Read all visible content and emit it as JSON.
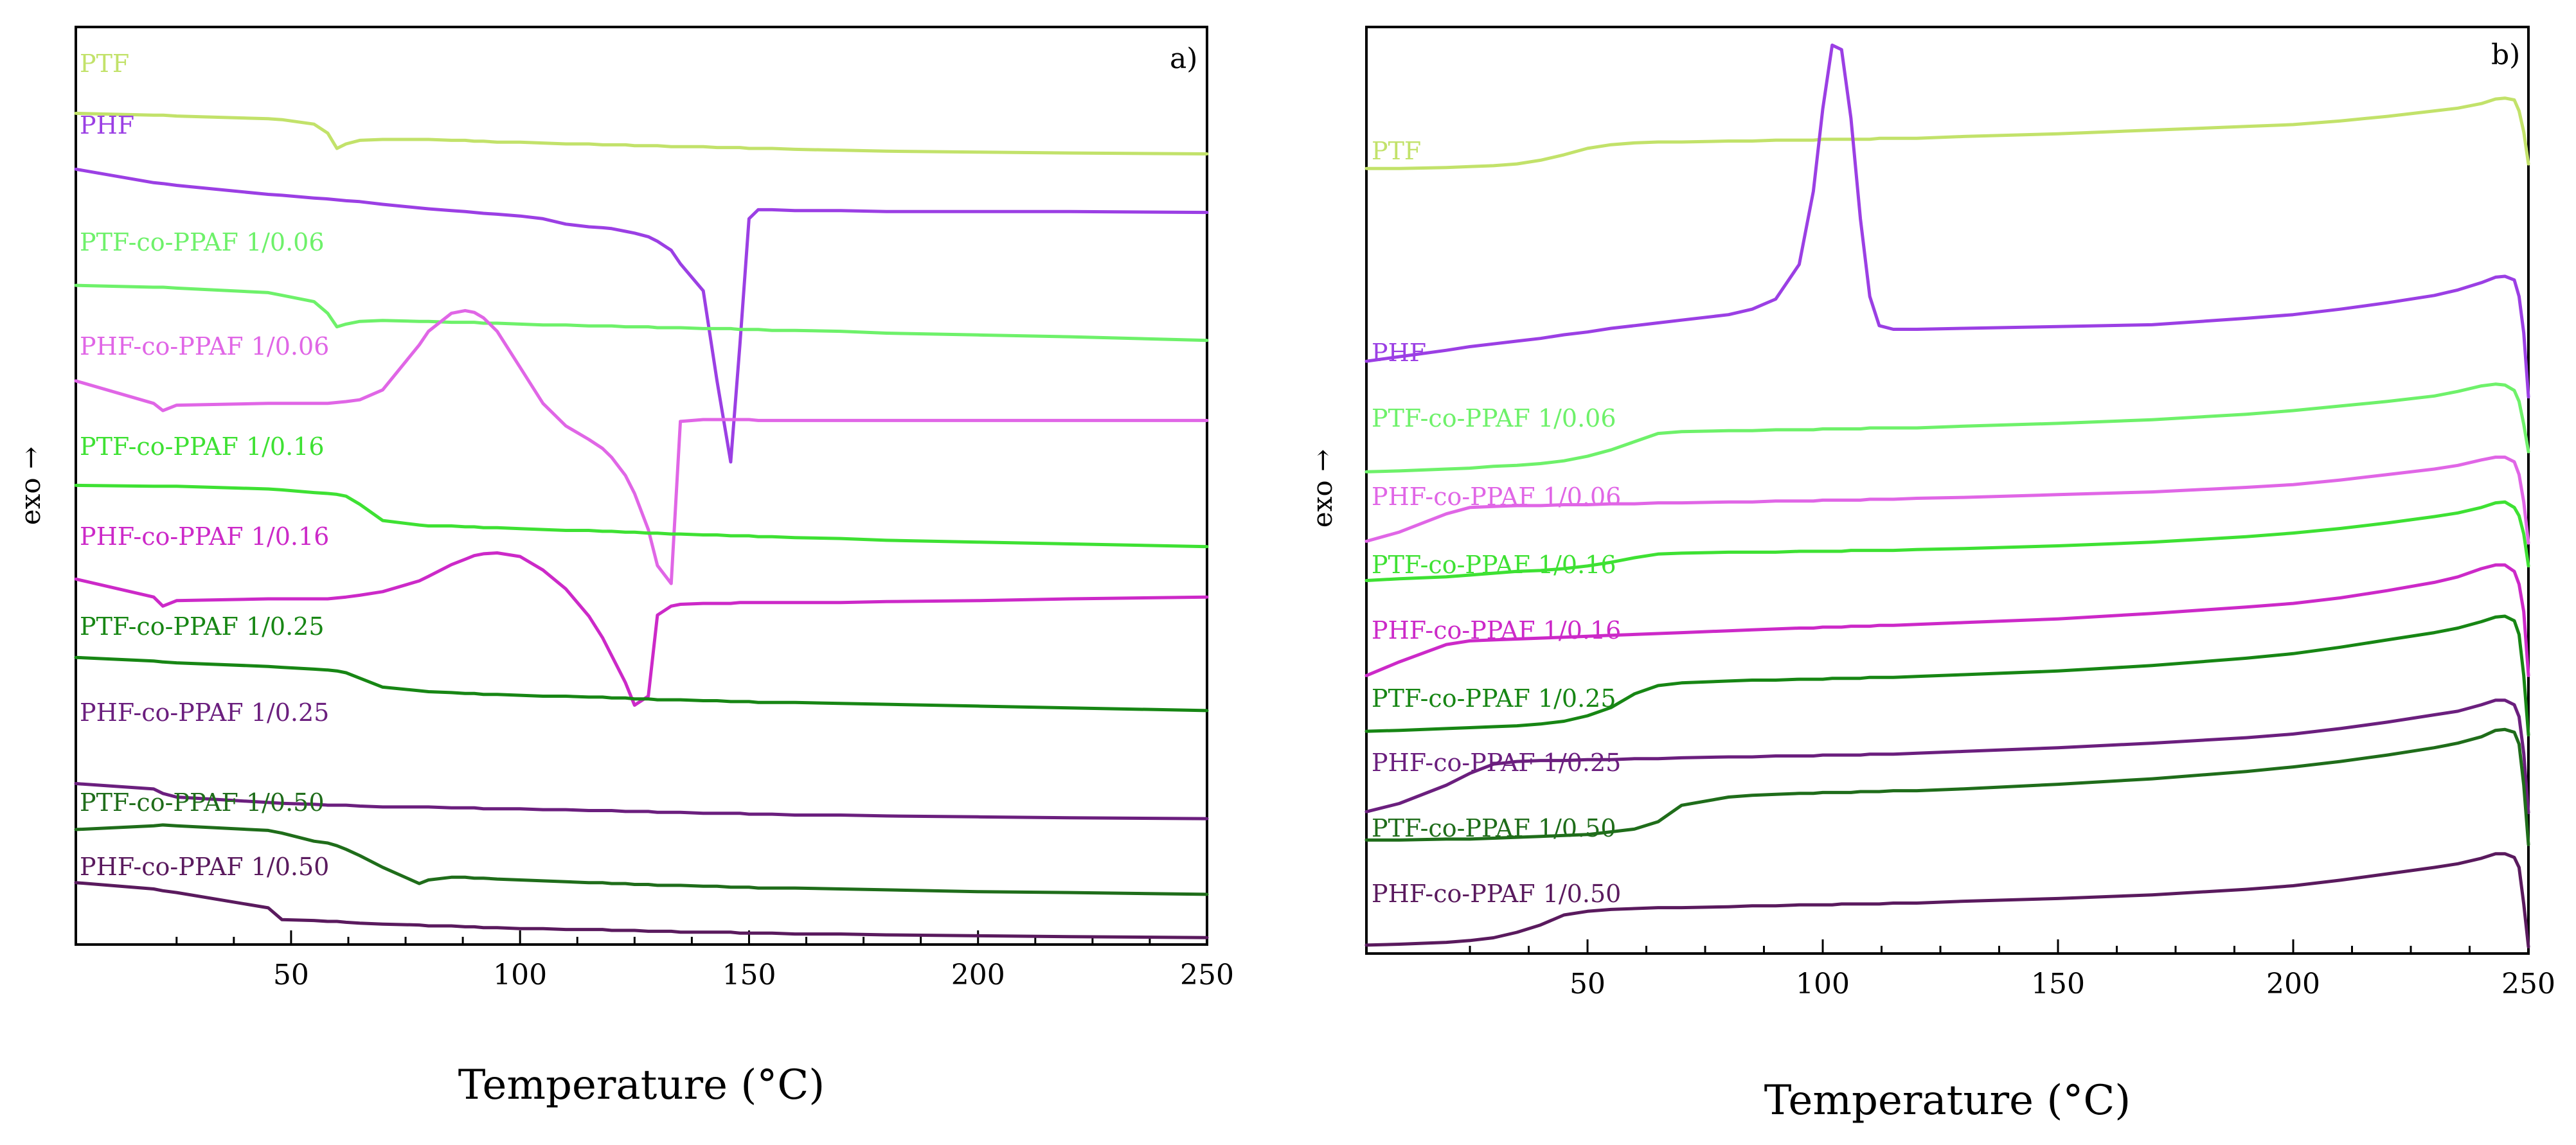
{
  "chart_data": [
    {
      "type": "line",
      "panel": "a",
      "panel_label": "a)",
      "title": "",
      "xlabel": "Temperature (°C)",
      "ylabel": "exo →",
      "xlim": [
        3,
        250
      ],
      "ylim": [
        0,
        100
      ],
      "xticks": [
        50,
        100,
        150,
        200,
        250
      ],
      "x": [
        3,
        20,
        22,
        25,
        45,
        48,
        55,
        58,
        60,
        62,
        65,
        70,
        78,
        80,
        85,
        88,
        90,
        92,
        95,
        100,
        105,
        110,
        115,
        118,
        120,
        123,
        125,
        128,
        130,
        133,
        135,
        140,
        143,
        146,
        148,
        150,
        152,
        155,
        160,
        170,
        180,
        200,
        220,
        250
      ],
      "series": [
        {
          "name": "PTF",
          "color": "#c2e26a",
          "y": [
            91.7,
            91.5,
            91.5,
            91.4,
            91.1,
            91.0,
            90.5,
            89.5,
            87.8,
            88.3,
            88.7,
            88.8,
            88.8,
            88.8,
            88.7,
            88.7,
            88.6,
            88.6,
            88.5,
            88.5,
            88.4,
            88.3,
            88.3,
            88.2,
            88.2,
            88.2,
            88.1,
            88.1,
            88.1,
            88.0,
            88.0,
            88.0,
            87.9,
            87.9,
            87.9,
            87.8,
            87.8,
            87.8,
            87.7,
            87.6,
            87.5,
            87.4,
            87.3,
            87.2
          ]
        },
        {
          "name": "PHF",
          "color": "#9b3fe4",
          "y": [
            85.5,
            84.0,
            83.9,
            83.7,
            82.7,
            82.6,
            82.3,
            82.2,
            82.1,
            82.0,
            81.9,
            81.6,
            81.2,
            81.1,
            80.9,
            80.8,
            80.7,
            80.6,
            80.5,
            80.3,
            80.0,
            79.4,
            79.1,
            79.0,
            78.9,
            78.6,
            78.4,
            78.0,
            77.5,
            76.5,
            75.0,
            72.0,
            62.0,
            53.0,
            66.0,
            80.0,
            81.0,
            81.0,
            80.9,
            80.9,
            80.8,
            80.8,
            80.8,
            80.7
          ]
        },
        {
          "name": "PTF-co-PPAF 1/0.06",
          "color": "#6ef16a",
          "y": [
            72.6,
            72.4,
            72.4,
            72.3,
            71.8,
            71.5,
            70.8,
            69.5,
            68.0,
            68.3,
            68.6,
            68.7,
            68.6,
            68.6,
            68.5,
            68.5,
            68.5,
            68.4,
            68.4,
            68.3,
            68.2,
            68.2,
            68.1,
            68.1,
            68.1,
            68.0,
            68.0,
            68.0,
            67.9,
            67.9,
            67.9,
            67.8,
            67.8,
            67.8,
            67.7,
            67.7,
            67.7,
            67.6,
            67.6,
            67.5,
            67.3,
            67.1,
            66.9,
            66.5
          ]
        },
        {
          "name": "PHF-co-PPAF 1/0.06",
          "color": "#e066e6",
          "y": [
            62.0,
            59.5,
            58.7,
            59.3,
            59.5,
            59.5,
            59.5,
            59.5,
            59.6,
            59.7,
            59.9,
            61.0,
            66.0,
            67.5,
            69.5,
            69.8,
            69.6,
            69.0,
            67.5,
            63.5,
            59.5,
            57.0,
            55.5,
            54.5,
            53.5,
            51.5,
            49.5,
            45.5,
            41.5,
            39.5,
            57.5,
            57.7,
            57.7,
            57.7,
            57.7,
            57.7,
            57.6,
            57.6,
            57.6,
            57.6,
            57.6,
            57.6,
            57.6,
            57.6
          ]
        },
        {
          "name": "PTF-co-PPAF 1/0.16",
          "color": "#3ee133",
          "y": [
            50.4,
            50.3,
            50.3,
            50.3,
            50.0,
            49.9,
            49.6,
            49.5,
            49.4,
            49.2,
            48.3,
            46.5,
            46.0,
            45.9,
            45.9,
            45.8,
            45.8,
            45.7,
            45.7,
            45.6,
            45.5,
            45.4,
            45.4,
            45.3,
            45.3,
            45.2,
            45.2,
            45.1,
            45.1,
            45.0,
            45.0,
            44.9,
            44.9,
            44.8,
            44.8,
            44.8,
            44.7,
            44.7,
            44.6,
            44.5,
            44.3,
            44.1,
            43.9,
            43.6
          ]
        },
        {
          "name": "PHF-co-PPAF 1/0.16",
          "color": "#cc29c8",
          "y": [
            40.0,
            38.0,
            37.0,
            37.6,
            37.8,
            37.8,
            37.8,
            37.8,
            37.9,
            38.0,
            38.2,
            38.6,
            39.8,
            40.3,
            41.6,
            42.2,
            42.6,
            42.8,
            42.9,
            42.5,
            41.0,
            38.9,
            35.9,
            33.5,
            31.5,
            28.5,
            26.0,
            27.0,
            36.0,
            37.0,
            37.2,
            37.3,
            37.3,
            37.3,
            37.4,
            37.4,
            37.4,
            37.4,
            37.4,
            37.4,
            37.5,
            37.6,
            37.8,
            38.0
          ]
        },
        {
          "name": "PTF-co-PPAF 1/0.25",
          "color": "#178614",
          "y": [
            31.3,
            30.9,
            30.8,
            30.7,
            30.3,
            30.2,
            30.0,
            29.9,
            29.8,
            29.6,
            29.0,
            28.0,
            27.6,
            27.5,
            27.4,
            27.3,
            27.3,
            27.2,
            27.2,
            27.1,
            27.0,
            27.0,
            26.9,
            26.9,
            26.8,
            26.8,
            26.7,
            26.7,
            26.6,
            26.6,
            26.6,
            26.5,
            26.5,
            26.4,
            26.4,
            26.4,
            26.3,
            26.3,
            26.3,
            26.2,
            26.1,
            25.9,
            25.7,
            25.4
          ]
        },
        {
          "name": "PHF-co-PPAF 1/0.25",
          "color": "#6b1f7e",
          "y": [
            17.3,
            16.7,
            16.2,
            15.8,
            15.2,
            15.1,
            15.0,
            14.9,
            14.9,
            14.9,
            14.8,
            14.7,
            14.7,
            14.7,
            14.6,
            14.6,
            14.6,
            14.5,
            14.5,
            14.5,
            14.4,
            14.4,
            14.3,
            14.3,
            14.3,
            14.2,
            14.2,
            14.2,
            14.1,
            14.1,
            14.1,
            14.0,
            14.0,
            14.0,
            14.0,
            13.9,
            13.9,
            13.9,
            13.8,
            13.8,
            13.7,
            13.6,
            13.5,
            13.4
          ]
        },
        {
          "name": "PTF-co-PPAF 1/0.50",
          "color": "#1f6d1a",
          "y": [
            12.2,
            12.6,
            12.7,
            12.6,
            12.1,
            11.8,
            10.9,
            10.7,
            10.4,
            10.0,
            9.3,
            8.0,
            6.2,
            6.6,
            6.9,
            6.9,
            6.8,
            6.8,
            6.7,
            6.6,
            6.5,
            6.4,
            6.3,
            6.3,
            6.2,
            6.2,
            6.1,
            6.1,
            6.0,
            6.0,
            6.0,
            5.9,
            5.9,
            5.8,
            5.8,
            5.8,
            5.7,
            5.7,
            5.7,
            5.6,
            5.5,
            5.3,
            5.2,
            5.0
          ]
        },
        {
          "name": "PHF-co-PPAF 1/0.50",
          "color": "#5a1a5e",
          "y": [
            6.3,
            5.6,
            5.4,
            5.2,
            3.5,
            2.2,
            2.1,
            2.0,
            2.0,
            1.9,
            1.8,
            1.7,
            1.6,
            1.5,
            1.5,
            1.4,
            1.4,
            1.3,
            1.3,
            1.2,
            1.2,
            1.1,
            1.1,
            1.1,
            1.0,
            1.0,
            1.0,
            0.9,
            0.9,
            0.9,
            0.8,
            0.8,
            0.8,
            0.8,
            0.7,
            0.7,
            0.7,
            0.7,
            0.6,
            0.6,
            0.5,
            0.4,
            0.3,
            0.2
          ]
        }
      ]
    },
    {
      "type": "line",
      "panel": "b",
      "panel_label": "b)",
      "title": "",
      "xlabel": "Temperature (°C)",
      "ylabel": "exo →",
      "xlim": [
        3,
        250
      ],
      "ylim": [
        0,
        100
      ],
      "xticks": [
        50,
        100,
        150,
        200,
        250
      ],
      "x": [
        3,
        10,
        20,
        25,
        30,
        35,
        40,
        45,
        50,
        55,
        60,
        65,
        70,
        80,
        85,
        90,
        95,
        98,
        100,
        102,
        104,
        106,
        108,
        110,
        112,
        115,
        120,
        130,
        150,
        170,
        190,
        200,
        210,
        220,
        230,
        235,
        240,
        243,
        245,
        247,
        248,
        249,
        250
      ],
      "series": [
        {
          "name": "PTF",
          "color": "#c2e26a",
          "y": [
            85.5,
            85.5,
            85.6,
            85.7,
            85.8,
            86.0,
            86.4,
            87.0,
            87.7,
            88.1,
            88.3,
            88.4,
            88.4,
            88.5,
            88.5,
            88.6,
            88.6,
            88.6,
            88.7,
            88.7,
            88.7,
            88.7,
            88.7,
            88.7,
            88.8,
            88.8,
            88.8,
            89.0,
            89.3,
            89.7,
            90.1,
            90.3,
            90.7,
            91.2,
            91.8,
            92.1,
            92.6,
            93.1,
            93.2,
            93.0,
            91.8,
            89.5,
            86.0
          ]
        },
        {
          "name": "PHF",
          "color": "#9b3fe4",
          "y": [
            64.4,
            64.9,
            65.6,
            66.0,
            66.3,
            66.6,
            66.9,
            67.3,
            67.6,
            68.0,
            68.3,
            68.6,
            68.9,
            69.5,
            70.1,
            71.2,
            75.0,
            83.0,
            92.0,
            99.0,
            98.5,
            91.0,
            80.0,
            71.5,
            68.3,
            67.9,
            67.9,
            68.0,
            68.2,
            68.4,
            69.1,
            69.5,
            70.1,
            70.8,
            71.6,
            72.2,
            73.0,
            73.6,
            73.7,
            73.3,
            71.5,
            67.5,
            60.5
          ]
        },
        {
          "name": "PTF-co-PPAF 1/0.06",
          "color": "#6ef16a",
          "y": [
            52.3,
            52.4,
            52.6,
            52.7,
            52.9,
            53.0,
            53.2,
            53.5,
            54.0,
            54.7,
            55.6,
            56.5,
            56.7,
            56.8,
            56.8,
            56.9,
            56.9,
            56.9,
            57.0,
            57.0,
            57.0,
            57.0,
            57.0,
            57.1,
            57.1,
            57.1,
            57.1,
            57.3,
            57.6,
            58.0,
            58.6,
            59.0,
            59.5,
            60.0,
            60.6,
            61.1,
            61.7,
            61.9,
            61.8,
            61.2,
            60.0,
            57.5,
            54.5
          ]
        },
        {
          "name": "PHF-co-PPAF 1/0.06",
          "color": "#e066e6",
          "y": [
            44.7,
            45.7,
            47.7,
            48.4,
            48.5,
            48.6,
            48.6,
            48.7,
            48.7,
            48.8,
            48.8,
            48.9,
            48.9,
            49.0,
            49.0,
            49.1,
            49.1,
            49.1,
            49.2,
            49.2,
            49.2,
            49.2,
            49.2,
            49.3,
            49.3,
            49.3,
            49.4,
            49.5,
            49.8,
            50.1,
            50.6,
            50.9,
            51.4,
            52.0,
            52.6,
            53.0,
            53.6,
            53.9,
            53.9,
            53.4,
            52.0,
            49.0,
            44.5
          ]
        },
        {
          "name": "PTF-co-PPAF 1/0.16",
          "color": "#3ee133",
          "y": [
            40.4,
            40.6,
            40.8,
            41.0,
            41.2,
            41.4,
            41.5,
            41.7,
            42.0,
            42.4,
            42.9,
            43.3,
            43.4,
            43.5,
            43.5,
            43.5,
            43.6,
            43.6,
            43.6,
            43.6,
            43.6,
            43.7,
            43.7,
            43.7,
            43.7,
            43.7,
            43.8,
            43.9,
            44.2,
            44.6,
            45.2,
            45.6,
            46.1,
            46.7,
            47.4,
            47.8,
            48.4,
            48.9,
            49.0,
            48.4,
            47.5,
            45.5,
            42.0
          ]
        },
        {
          "name": "PHF-co-PPAF 1/0.16",
          "color": "#cc29c8",
          "y": [
            30.0,
            31.5,
            33.4,
            33.8,
            33.9,
            34.0,
            34.1,
            34.2,
            34.3,
            34.4,
            34.5,
            34.6,
            34.7,
            34.9,
            35.0,
            35.1,
            35.2,
            35.2,
            35.3,
            35.3,
            35.3,
            35.4,
            35.4,
            35.4,
            35.5,
            35.5,
            35.6,
            35.8,
            36.2,
            36.8,
            37.5,
            37.9,
            38.5,
            39.3,
            40.2,
            40.8,
            41.7,
            42.1,
            42.1,
            41.4,
            40.0,
            37.0,
            30.0
          ]
        },
        {
          "name": "PTF-co-PPAF 1/0.25",
          "color": "#178614",
          "y": [
            23.9,
            24.0,
            24.2,
            24.3,
            24.4,
            24.5,
            24.7,
            25.0,
            25.6,
            26.5,
            28.0,
            28.9,
            29.2,
            29.4,
            29.5,
            29.5,
            29.6,
            29.6,
            29.6,
            29.7,
            29.7,
            29.7,
            29.7,
            29.8,
            29.8,
            29.8,
            29.9,
            30.1,
            30.5,
            31.1,
            31.9,
            32.4,
            33.1,
            33.9,
            34.7,
            35.2,
            35.9,
            36.4,
            36.5,
            36.0,
            34.5,
            30.0,
            23.5
          ]
        },
        {
          "name": "PHF-co-PPAF 1/0.25",
          "color": "#6b1f7e",
          "y": [
            15.1,
            16.0,
            18.0,
            19.3,
            20.3,
            20.6,
            20.7,
            20.7,
            20.8,
            20.8,
            20.9,
            20.9,
            21.0,
            21.1,
            21.1,
            21.2,
            21.2,
            21.2,
            21.3,
            21.3,
            21.3,
            21.3,
            21.3,
            21.4,
            21.4,
            21.4,
            21.5,
            21.7,
            22.1,
            22.6,
            23.2,
            23.6,
            24.2,
            24.9,
            25.7,
            26.1,
            26.8,
            27.3,
            27.3,
            26.8,
            25.5,
            21.5,
            15.0
          ]
        },
        {
          "name": "PTF-co-PPAF 1/0.50",
          "color": "#1f6d1a",
          "y": [
            12.0,
            12.0,
            12.1,
            12.1,
            12.2,
            12.3,
            12.4,
            12.5,
            12.6,
            12.9,
            13.2,
            14.0,
            15.8,
            16.7,
            16.9,
            17.0,
            17.1,
            17.1,
            17.2,
            17.2,
            17.2,
            17.2,
            17.3,
            17.3,
            17.3,
            17.4,
            17.4,
            17.6,
            18.1,
            18.7,
            19.5,
            20.0,
            20.6,
            21.3,
            22.1,
            22.6,
            23.3,
            24.0,
            24.1,
            23.8,
            22.5,
            18.0,
            11.5
          ]
        },
        {
          "name": "PHF-co-PPAF 1/0.50",
          "color": "#5a1a5e",
          "y": [
            0.5,
            0.6,
            0.8,
            1.0,
            1.3,
            1.9,
            2.7,
            3.8,
            4.2,
            4.4,
            4.5,
            4.6,
            4.6,
            4.7,
            4.8,
            4.8,
            4.9,
            4.9,
            4.9,
            4.9,
            5.0,
            5.0,
            5.0,
            5.0,
            5.0,
            5.1,
            5.1,
            5.3,
            5.6,
            6.0,
            6.6,
            7.0,
            7.6,
            8.3,
            9.0,
            9.4,
            10.0,
            10.5,
            10.5,
            10.1,
            9.0,
            5.0,
            0.3
          ]
        }
      ]
    }
  ]
}
